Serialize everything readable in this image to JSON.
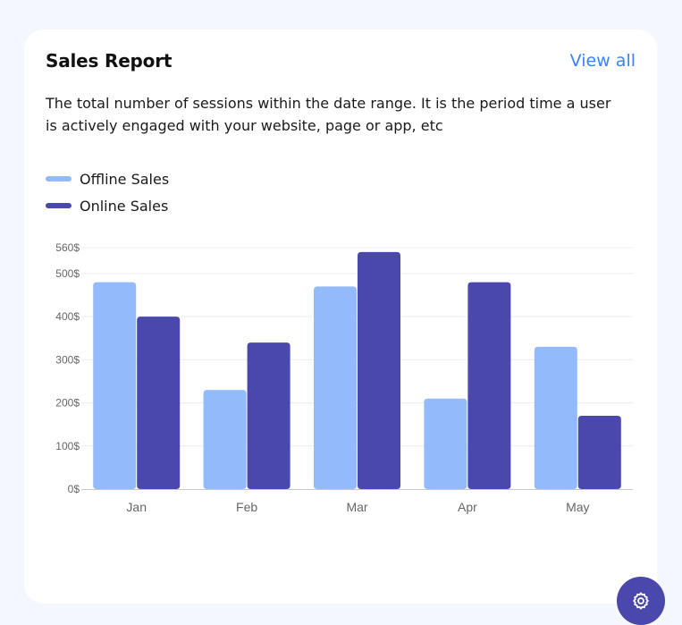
{
  "card": {
    "title": "Sales Report",
    "view_all_label": "View all",
    "description": "The total number of sessions within the date range. It is the period time a user is actively engaged with your website, page or app, etc"
  },
  "legend": [
    {
      "label": "Offline Sales",
      "color": "#93bbfb"
    },
    {
      "label": "Online Sales",
      "color": "#4a47ad"
    }
  ],
  "chart_data": {
    "type": "bar",
    "title": "Sales Report",
    "xlabel": "",
    "ylabel": "",
    "categories": [
      "Jan",
      "Feb",
      "Mar",
      "Apr",
      "May"
    ],
    "series": [
      {
        "name": "Offline Sales",
        "color": "#93bbfb",
        "values": [
          480,
          230,
          470,
          210,
          330
        ]
      },
      {
        "name": "Online Sales",
        "color": "#4a47ad",
        "values": [
          400,
          340,
          550,
          480,
          170
        ]
      }
    ],
    "yticks": [
      0,
      100,
      200,
      300,
      400,
      500,
      560
    ],
    "ytick_labels": [
      "0$",
      "100$",
      "200$",
      "300$",
      "400$",
      "500$",
      "560$"
    ],
    "ylim": [
      0,
      560
    ],
    "grid": true,
    "legend_position": "top-left"
  },
  "fab": {
    "icon": "gear-icon",
    "color": "#4a47ad"
  }
}
